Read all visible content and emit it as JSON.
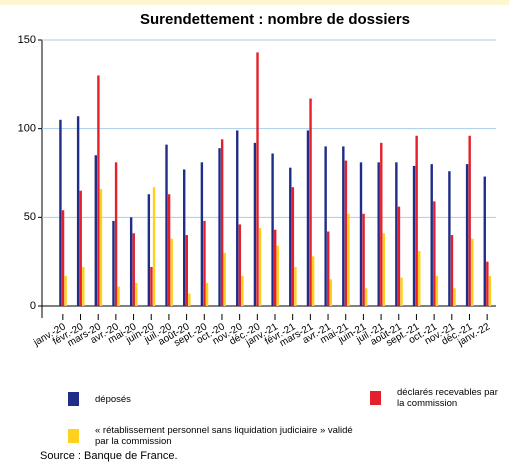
{
  "chart_data": {
    "type": "bar",
    "title": "Surendettement : nombre de dossiers",
    "source": "Source : Banque de France.",
    "categories": [
      "janv.-20",
      "févr.-20",
      "mars-20",
      "avr.-20",
      "mai-20",
      "juin-20",
      "juil.-20",
      "août-20",
      "sept.-20",
      "oct.-20",
      "nov.-20",
      "déc.-20",
      "janv.-21",
      "févr.-21",
      "mars-21",
      "avr.-21",
      "mai-21",
      "juin-21",
      "juil.-21",
      "août-21",
      "sept.-21",
      "oct.-21",
      "nov.-21",
      "déc.-21",
      "janv.-22"
    ],
    "series": [
      {
        "name": "déposés",
        "color": "#1f2d86",
        "values": [
          105,
          107,
          85,
          48,
          50,
          63,
          91,
          77,
          81,
          89,
          99,
          92,
          86,
          78,
          99,
          90,
          90,
          81,
          81,
          81,
          79,
          80,
          76,
          80,
          73
        ]
      },
      {
        "name": "déclarés recevables par la commission",
        "color": "#e3202b",
        "values": [
          54,
          65,
          130,
          81,
          41,
          22,
          63,
          40,
          48,
          94,
          46,
          143,
          43,
          67,
          117,
          42,
          82,
          52,
          92,
          56,
          96,
          59,
          40,
          96,
          25
        ]
      },
      {
        "name": "« rétablissement personnel sans liquidation judiciaire » validé par la commission",
        "color": "#ffd11c",
        "values": [
          17,
          22,
          66,
          11,
          13,
          67,
          38,
          7,
          13,
          30,
          17,
          44,
          34,
          22,
          28,
          15,
          52,
          10,
          41,
          16,
          31,
          17,
          10,
          38,
          17
        ]
      }
    ],
    "ylim": [
      0,
      150
    ],
    "yticks": [
      0,
      50,
      100,
      150
    ],
    "grid": true
  }
}
